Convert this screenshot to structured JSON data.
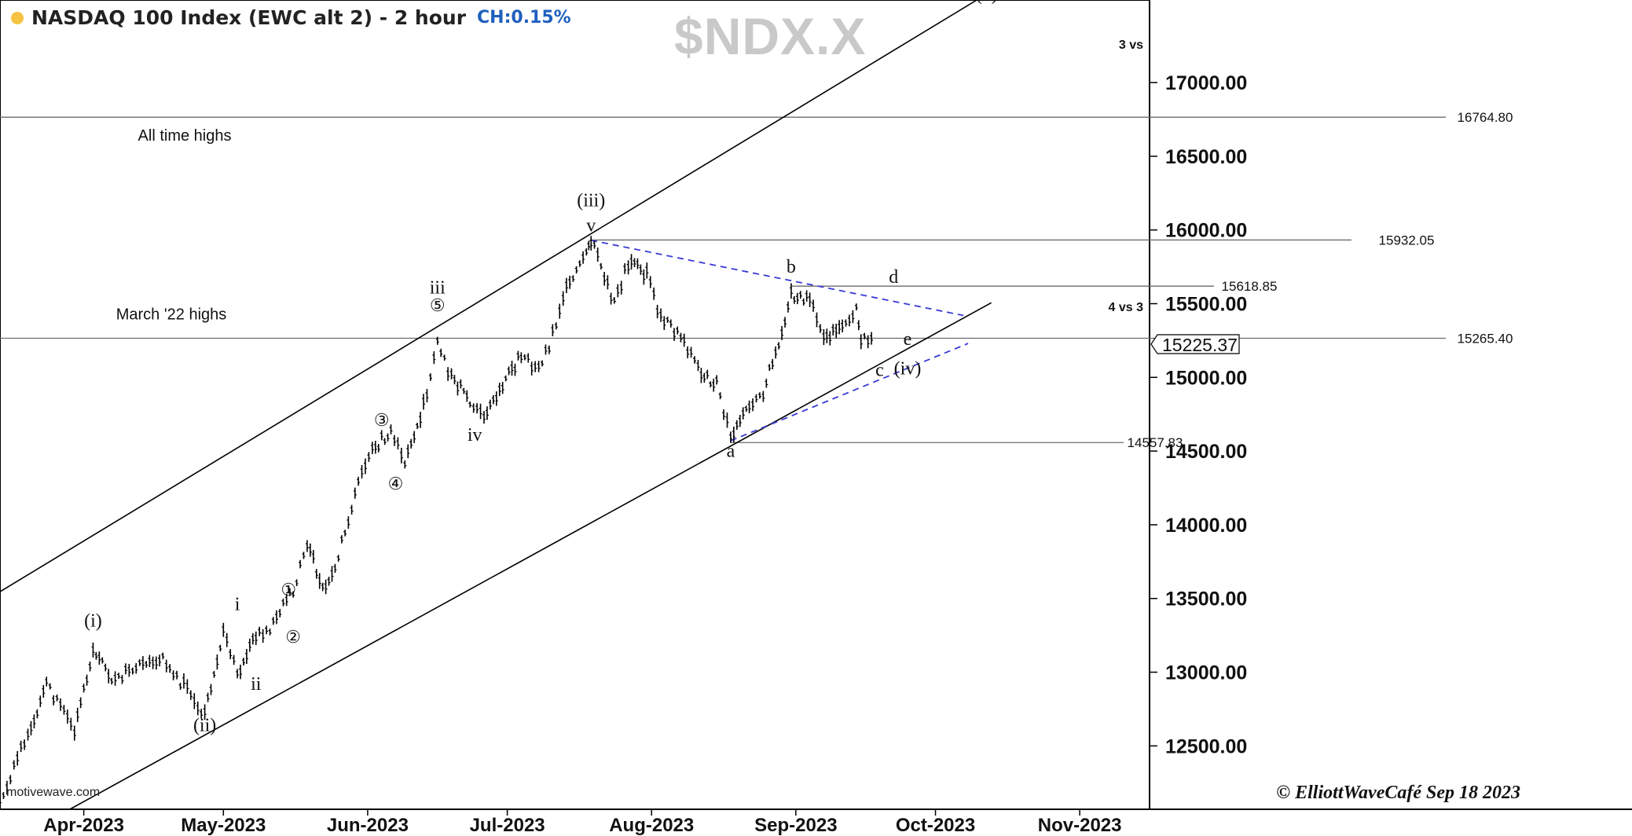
{
  "header": {
    "title": "NASDAQ 100 Index (EWC alt 2) - 2 hour",
    "change": "CH:0.15%",
    "symbol": "$NDX.X"
  },
  "source": "motivewave.com",
  "copyright": "© ElliottWaveCafé Sep 18 2023",
  "colors": {
    "bars": "#000000",
    "trendline": "#3a3ad6",
    "channel": "#000000",
    "hline": "#6b6b6b",
    "status_dot": "#f5c242",
    "change": "#1f5fbf",
    "symbol": "#c9c9c9"
  },
  "chart_data": {
    "type": "line",
    "y_axis": {
      "ticks": [
        12500,
        13000,
        13500,
        14000,
        14500,
        15000,
        15500,
        16000,
        16500,
        17000
      ],
      "tick_labels": [
        "12500.00",
        "13000.00",
        "13500.00",
        "14000.00",
        "14500.00",
        "15000.00",
        "15500.00",
        "16000.00",
        "16500.00",
        "17000.00"
      ],
      "ylim": [
        12070,
        17560
      ],
      "position": "right"
    },
    "x_axis": {
      "labels": [
        "Apr-2023",
        "May-2023",
        "Jun-2023",
        "Jul-2023",
        "Aug-2023",
        "Sep-2023",
        "Oct-2023",
        "Nov-2023"
      ],
      "label_dates": [
        "2023-04-01",
        "2023-05-01",
        "2023-06-01",
        "2023-07-01",
        "2023-08-01",
        "2023-09-01",
        "2023-10-01",
        "2023-11-01"
      ],
      "xlim": [
        "2023-03-14",
        "2023-11-16"
      ]
    },
    "series": [
      {
        "x": [
          "2023-03-14",
          "2023-03-20",
          "2023-03-24",
          "2023-03-30",
          "2023-04-03",
          "2023-04-07",
          "2023-04-13",
          "2023-04-18",
          "2023-04-24",
          "2023-04-27",
          "2023-05-01",
          "2023-05-04",
          "2023-05-08",
          "2023-05-11",
          "2023-05-16",
          "2023-05-19",
          "2023-05-23",
          "2023-05-25",
          "2023-05-30",
          "2023-06-02",
          "2023-06-06",
          "2023-06-09",
          "2023-06-13",
          "2023-06-16",
          "2023-06-19",
          "2023-06-23",
          "2023-06-26",
          "2023-06-30",
          "2023-07-04",
          "2023-07-07",
          "2023-07-10",
          "2023-07-13",
          "2023-07-18",
          "2023-07-19",
          "2023-07-24",
          "2023-07-27",
          "2023-07-31",
          "2023-08-03",
          "2023-08-08",
          "2023-08-11",
          "2023-08-15",
          "2023-08-18",
          "2023-08-22",
          "2023-08-25",
          "2023-08-29",
          "2023-08-31",
          "2023-09-04",
          "2023-09-07",
          "2023-09-11",
          "2023-09-14",
          "2023-09-15",
          "2023-09-18"
        ],
        "y": [
          12120,
          12580,
          12920,
          12600,
          13150,
          12950,
          13030,
          13080,
          12850,
          12720,
          13280,
          12980,
          13250,
          13300,
          13550,
          13850,
          13550,
          13700,
          14300,
          14500,
          14650,
          14400,
          14800,
          15230,
          15000,
          14850,
          14750,
          14950,
          15150,
          15050,
          15200,
          15550,
          15850,
          15930,
          15500,
          15780,
          15700,
          15400,
          15250,
          15050,
          14950,
          14600,
          14800,
          14900,
          15300,
          15560,
          15520,
          15260,
          15350,
          15460,
          15260,
          15225
        ]
      }
    ],
    "horizontal_levels": [
      {
        "value": 16764.8,
        "label": "16764.80",
        "note": "All time highs"
      },
      {
        "value": 15932.05,
        "label": "15932.05"
      },
      {
        "value": 15618.85,
        "label": "15618.85"
      },
      {
        "value": 15265.4,
        "label": "15265.40",
        "note": "March '22 highs"
      },
      {
        "value": 14557.83,
        "label": "14557.83"
      }
    ],
    "last_price": "15225.37",
    "trendlines": [
      {
        "kind": "channel",
        "from": [
          "2023-03-14",
          13546
        ],
        "to": [
          "2023-10-10",
          17562
        ]
      },
      {
        "kind": "channel",
        "from": [
          "2023-03-29",
          12070
        ],
        "to": [
          "2023-10-13",
          15506
        ]
      },
      {
        "kind": "triangle",
        "from": [
          "2023-07-19",
          15930
        ],
        "to": [
          "2023-10-07",
          15420
        ]
      },
      {
        "kind": "triangle",
        "from": [
          "2023-08-18",
          14570
        ],
        "to": [
          "2023-10-08",
          15230
        ]
      }
    ],
    "annotations": [
      {
        "text": "(i)",
        "x": "2023-04-03",
        "y": 13310
      },
      {
        "text": "(ii)",
        "x": "2023-04-27",
        "y": 12600
      },
      {
        "text": "i",
        "x": "2023-05-04",
        "y": 13420
      },
      {
        "text": "ii",
        "x": "2023-05-08",
        "y": 12880
      },
      {
        "text": "①",
        "x": "2023-05-15",
        "y": 13520
      },
      {
        "text": "②",
        "x": "2023-05-16",
        "y": 13200
      },
      {
        "text": "③",
        "x": "2023-06-04",
        "y": 14670
      },
      {
        "text": "④",
        "x": "2023-06-07",
        "y": 14240
      },
      {
        "text": "⑤",
        "x": "2023-06-16",
        "y": 15450
      },
      {
        "text": "iii",
        "x": "2023-06-16",
        "y": 15570
      },
      {
        "text": "iv",
        "x": "2023-06-24",
        "y": 14570
      },
      {
        "text": "(iii)",
        "x": "2023-07-19",
        "y": 16160
      },
      {
        "text": "v",
        "x": "2023-07-19",
        "y": 15990
      },
      {
        "text": "a",
        "x": "2023-08-18",
        "y": 14460
      },
      {
        "text": "b",
        "x": "2023-08-31",
        "y": 15710
      },
      {
        "text": "c",
        "x": "2023-09-19",
        "y": 15010
      },
      {
        "text": "d",
        "x": "2023-09-22",
        "y": 15640
      },
      {
        "text": "e",
        "x": "2023-09-25",
        "y": 15220
      },
      {
        "text": "(iv)",
        "x": "2023-09-25",
        "y": 15020
      },
      {
        "text": "(v)",
        "x": "2023-10-12",
        "y": 17560
      }
    ],
    "side_notes": [
      {
        "text": "3 vs",
        "y": 17230
      },
      {
        "text": "4 vs 3",
        "y": 15450
      }
    ],
    "legend": "none"
  }
}
